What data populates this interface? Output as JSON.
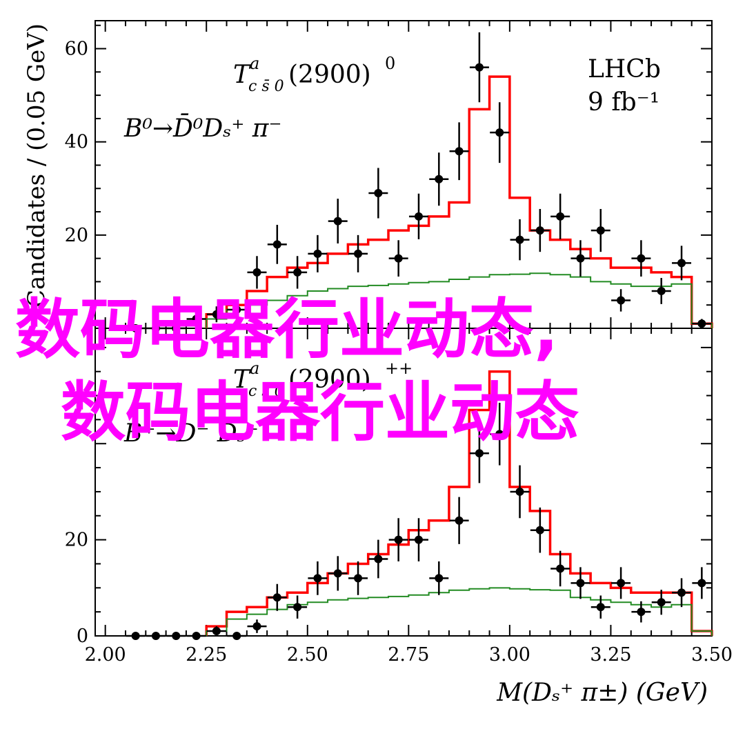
{
  "chart_data": [
    {
      "panel": "top",
      "type": "histogram",
      "ylabel": "Candidates / (0.05 GeV)",
      "ylim": [
        0,
        66
      ],
      "yticks": [
        "20",
        "40",
        "60"
      ],
      "ytick_values": [
        20,
        40,
        60
      ],
      "xlim": [
        1.975,
        3.5
      ],
      "annotations": {
        "experiment": "LHCb",
        "luminosity": "9 fb⁻¹",
        "state": "T",
        "state_sup": "a",
        "state_sub": "c s̄ 0",
        "state_mass": "(2900)",
        "state_charge": "0",
        "decay": "B⁰→D̄⁰Dₛ⁺ π⁻"
      },
      "series": [
        {
          "name": "data",
          "kind": "points",
          "x": [
            2.075,
            2.125,
            2.175,
            2.225,
            2.275,
            2.325,
            2.375,
            2.425,
            2.475,
            2.525,
            2.575,
            2.625,
            2.675,
            2.725,
            2.775,
            2.825,
            2.875,
            2.925,
            2.975,
            3.025,
            3.075,
            3.125,
            3.175,
            3.225,
            3.275,
            3.325,
            3.375,
            3.425,
            3.475
          ],
          "y": [
            0,
            0,
            0,
            2,
            3,
            4,
            12,
            18,
            12,
            16,
            23,
            16,
            29,
            15,
            24,
            32,
            38,
            56,
            42,
            19,
            21,
            24,
            15,
            21,
            6,
            15,
            8,
            14,
            1
          ],
          "yerr": [
            0,
            0,
            0,
            1.4,
            1.7,
            2,
            3.5,
            4.2,
            3.5,
            4,
            4.8,
            4,
            5.4,
            3.9,
            4.9,
            5.7,
            6.2,
            7.5,
            6.5,
            4.4,
            4.6,
            4.9,
            3.9,
            4.6,
            2.4,
            3.9,
            2.8,
            3.7,
            1
          ]
        },
        {
          "name": "total fit",
          "kind": "step",
          "color": "#ff0000",
          "edges": [
            2.25,
            2.3,
            2.35,
            2.4,
            2.45,
            2.5,
            2.55,
            2.6,
            2.65,
            2.7,
            2.75,
            2.8,
            2.85,
            2.9,
            2.95,
            3.0,
            3.05,
            3.1,
            3.15,
            3.2,
            3.25,
            3.3,
            3.35,
            3.4,
            3.45
          ],
          "values": [
            3,
            5,
            8,
            11,
            13,
            14,
            16,
            18,
            19,
            21,
            22,
            24,
            27,
            47,
            54,
            28,
            21,
            19,
            17,
            15,
            13,
            13,
            12,
            11,
            1
          ]
        },
        {
          "name": "background component",
          "kind": "step",
          "color": "#228b22",
          "edges": [
            2.25,
            2.3,
            2.35,
            2.4,
            2.45,
            2.5,
            2.55,
            2.6,
            2.65,
            2.7,
            2.75,
            2.8,
            2.85,
            2.9,
            2.95,
            3.0,
            3.05,
            3.1,
            3.15,
            3.2,
            3.25,
            3.3,
            3.35,
            3.4,
            3.45
          ],
          "values": [
            2,
            4,
            5,
            6,
            7,
            8,
            8.5,
            9,
            9.2,
            9.5,
            9.8,
            10,
            10.5,
            11,
            11.5,
            11.6,
            11.8,
            11.5,
            11,
            10,
            9.5,
            9,
            9,
            9.5,
            1
          ]
        }
      ]
    },
    {
      "panel": "bottom",
      "type": "histogram",
      "ylim": [
        0,
        64
      ],
      "yticks": [
        "0",
        "20"
      ],
      "ytick_values": [
        0,
        20
      ],
      "xlim": [
        1.975,
        3.5
      ],
      "xlabel": "M(Dₛ⁺ π±) (GeV)",
      "xticks": [
        "2.00",
        "2.25",
        "2.50",
        "2.75",
        "3.00",
        "3.25",
        "3.50"
      ],
      "xtick_values": [
        2.0,
        2.25,
        2.5,
        2.75,
        3.0,
        3.25,
        3.5
      ],
      "annotations": {
        "state": "T",
        "state_sup": "a",
        "state_sub": "c s̄ 0",
        "state_mass": "(2900)",
        "state_charge": "++",
        "decay": "B⁺→D⁻ Dₛ⁺"
      },
      "series": [
        {
          "name": "data",
          "kind": "points",
          "x": [
            2.075,
            2.125,
            2.175,
            2.225,
            2.275,
            2.325,
            2.375,
            2.425,
            2.475,
            2.525,
            2.575,
            2.625,
            2.675,
            2.725,
            2.775,
            2.825,
            2.875,
            2.925,
            2.975,
            3.025,
            3.075,
            3.125,
            3.175,
            3.225,
            3.275,
            3.325,
            3.375,
            3.425,
            3.475
          ],
          "y": [
            0,
            0,
            0,
            0,
            1,
            0,
            2,
            8,
            6,
            12,
            13,
            12,
            16,
            20,
            20,
            12,
            24,
            38,
            42,
            30,
            22,
            14,
            11,
            6,
            11,
            5,
            7,
            9,
            11
          ],
          "yerr": [
            0,
            0,
            0,
            0,
            1,
            0,
            1.4,
            2.8,
            2.4,
            3.5,
            3.6,
            3.5,
            4,
            4.5,
            4.5,
            3.5,
            4.9,
            6.2,
            6.5,
            5.5,
            4.7,
            3.7,
            3.3,
            2.4,
            3.3,
            2.2,
            2.6,
            3,
            3.3
          ]
        },
        {
          "name": "total fit",
          "kind": "step",
          "color": "#ff0000",
          "edges": [
            2.25,
            2.3,
            2.35,
            2.4,
            2.45,
            2.5,
            2.55,
            2.6,
            2.65,
            2.7,
            2.75,
            2.8,
            2.85,
            2.9,
            2.95,
            3.0,
            3.05,
            3.1,
            3.15,
            3.2,
            3.25,
            3.3,
            3.35,
            3.4,
            3.45
          ],
          "values": [
            2,
            5,
            6,
            8,
            9,
            11,
            13,
            15,
            17,
            19,
            22,
            24,
            31,
            47,
            55,
            31,
            26,
            17,
            13,
            11,
            10,
            9,
            9,
            9,
            1
          ]
        },
        {
          "name": "background component",
          "kind": "step",
          "color": "#228b22",
          "edges": [
            2.25,
            2.3,
            2.35,
            2.4,
            2.45,
            2.5,
            2.55,
            2.6,
            2.65,
            2.7,
            2.75,
            2.8,
            2.85,
            2.9,
            2.95,
            3.0,
            3.05,
            3.1,
            3.15,
            3.2,
            3.25,
            3.3,
            3.35,
            3.4,
            3.45
          ],
          "values": [
            1,
            3.5,
            4.5,
            5.5,
            6.5,
            7,
            7.5,
            7.8,
            8,
            8.2,
            8.5,
            9,
            9.5,
            9.8,
            10,
            9.8,
            9.6,
            9.5,
            8,
            7.5,
            7,
            6.5,
            6,
            6.5,
            1
          ]
        }
      ]
    }
  ],
  "watermark": {
    "line1": "数码电器行业动态,",
    "line2": "数码电器行业动态"
  }
}
